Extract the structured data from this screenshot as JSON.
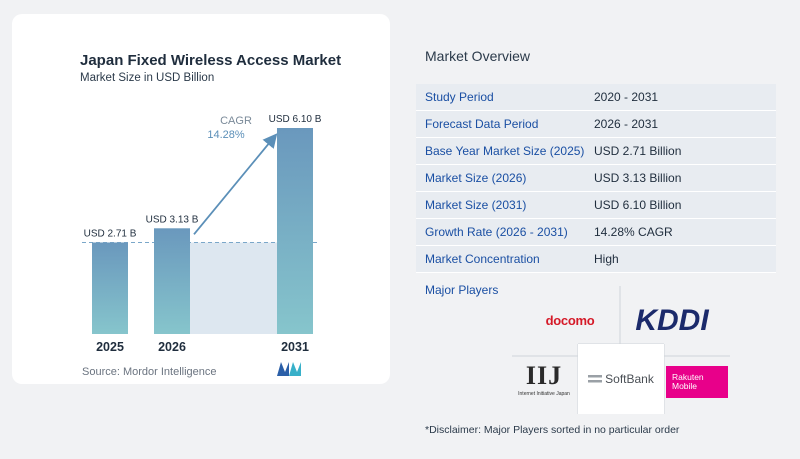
{
  "chart_data": {
    "type": "bar",
    "title": "Japan Fixed Wireless Access Market",
    "subtitle": "Market Size in USD Billion",
    "categories": [
      "2025",
      "2026",
      "2031"
    ],
    "values": [
      2.71,
      3.13,
      6.1
    ],
    "data_labels": [
      "USD 2.71 B",
      "USD 3.13 B",
      "USD 6.10 B"
    ],
    "cagr_label": "CAGR",
    "cagr_value": "14.28%",
    "ylim": [
      0,
      6.1
    ],
    "grid": false,
    "colors": {
      "bar_top": "#6a98bd",
      "bar_bottom": "#86c5cc",
      "shade": "#dde7f0",
      "arrow": "#5b8fb8",
      "dash": "#7aa7c9"
    }
  },
  "source": "Source:  Mordor Intelligence",
  "overview": {
    "title": "Market Overview",
    "rows": [
      {
        "key": "Study Period",
        "value": "2020 - 2031"
      },
      {
        "key": "Forecast Data Period",
        "value": "2026 - 2031"
      },
      {
        "key": "Base Year Market Size (2025)",
        "value": "USD 2.71 Billion"
      },
      {
        "key": "Market Size (2026)",
        "value": "USD 3.13 Billion"
      },
      {
        "key": "Market Size (2031)",
        "value": "USD 6.10 Billion"
      },
      {
        "key": "Growth Rate (2026 - 2031)",
        "value": "14.28% CAGR"
      },
      {
        "key": "Market Concentration",
        "value": "High"
      }
    ]
  },
  "players": {
    "title": "Major Players",
    "docomo": "docomo",
    "kddi": "KDDI",
    "iij": "IIJ",
    "iij_sub": "Internet Initiative Japan",
    "softbank": "SoftBank",
    "rakuten_line1": "Rakuten",
    "rakuten_line2": "Mobile"
  },
  "disclaimer": "*Disclaimer: Major Players sorted in no particular order"
}
